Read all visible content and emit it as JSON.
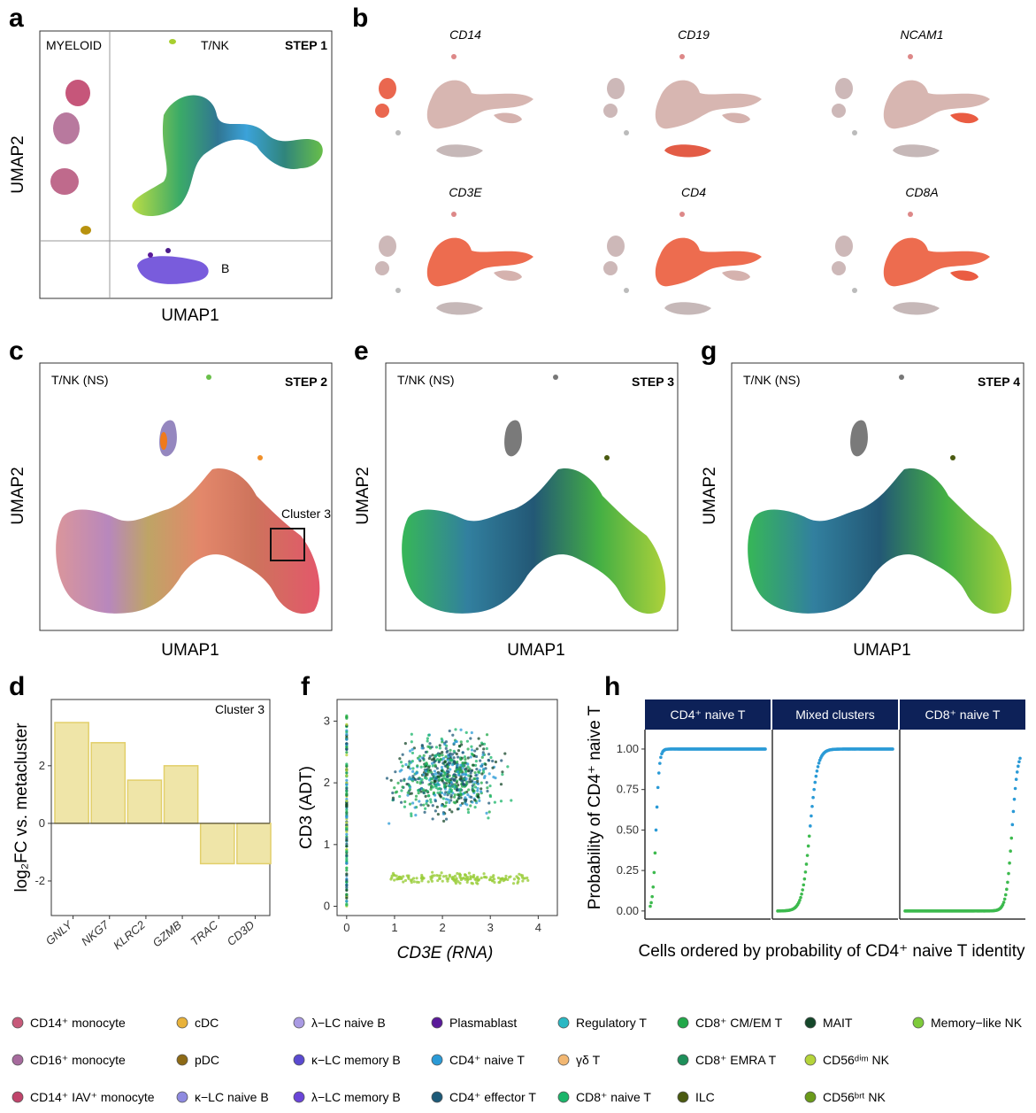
{
  "panels": {
    "a": {
      "label": "a",
      "xlabel": "UMAP1",
      "ylabel": "UMAP2",
      "step": "STEP 1",
      "regions": [
        "MYELOID",
        "T/NK",
        "B"
      ]
    },
    "b": {
      "label": "b",
      "genes": [
        "CD14",
        "CD19",
        "NCAM1",
        "CD3E",
        "CD4",
        "CD8A"
      ]
    },
    "c": {
      "label": "c",
      "title": "T/NK (NS)",
      "step": "STEP 2",
      "annotation": "Cluster 3",
      "xlabel": "UMAP1",
      "ylabel": "UMAP2"
    },
    "e": {
      "label": "e",
      "title": "T/NK (NS)",
      "step": "STEP 3",
      "xlabel": "UMAP1",
      "ylabel": "UMAP2"
    },
    "g": {
      "label": "g",
      "title": "T/NK (NS)",
      "step": "STEP 4",
      "xlabel": "UMAP1",
      "ylabel": "UMAP2"
    },
    "d": {
      "label": "d",
      "annotation": "Cluster 3"
    },
    "f": {
      "label": "f"
    },
    "h": {
      "label": "h",
      "facets": [
        "CD4⁺ naive T",
        "Mixed clusters",
        "CD8⁺ naive T"
      ],
      "strip_color": "#0d2158"
    }
  },
  "chart_data": [
    {
      "id": "d",
      "type": "bar",
      "categories": [
        "GNLY",
        "NKG7",
        "KLRC2",
        "GZMB",
        "TRAC",
        "CD3D"
      ],
      "values": [
        3.5,
        2.8,
        1.5,
        2.0,
        -1.4,
        -1.4
      ],
      "ylabel": "log₂FC vs. metacluster",
      "yticks": [
        -2,
        0,
        2
      ],
      "ylim": [
        -3.2,
        4.3
      ],
      "bar_color": "#efe5a8",
      "bar_edge": "#e2cf6a"
    },
    {
      "id": "f",
      "type": "scatter",
      "xlabel": "CD3E (RNA)",
      "ylabel": "CD3 (ADT)",
      "xticks": [
        0,
        1,
        2,
        3,
        4
      ],
      "yticks": [
        0,
        1,
        2,
        3
      ],
      "xlim": [
        -0.2,
        4.4
      ],
      "ylim": [
        -0.15,
        3.35
      ]
    },
    {
      "id": "h",
      "type": "line",
      "xlabel": "Cells ordered by probability of CD4⁺ naive T identity",
      "ylabel": "Probability of CD4⁺ naive T",
      "yticks": [
        "0.00",
        "0.25",
        "0.50",
        "0.75",
        "1.00"
      ],
      "ylim": [
        -0.05,
        1.12
      ],
      "high_color": "#2a9ad6",
      "low_color": "#3dba4e"
    }
  ],
  "legend": [
    {
      "label": "CD14⁺ monocyte",
      "color": "#c75a7a"
    },
    {
      "label": "cDC",
      "color": "#e8b23a"
    },
    {
      "label": "λ−LC naive B",
      "color": "#a99ae3"
    },
    {
      "label": "Plasmablast",
      "color": "#5a1a9a"
    },
    {
      "label": "Regulatory T",
      "color": "#2ab8c3"
    },
    {
      "label": "CD8⁺ CM/EM T",
      "color": "#22a84a"
    },
    {
      "label": "MAIT",
      "color": "#15472a"
    },
    {
      "label": "Memory−like NK",
      "color": "#7ecb3a"
    },
    {
      "label": "CD16⁺ monocyte",
      "color": "#a66a9d"
    },
    {
      "label": "pDC",
      "color": "#8d6a16"
    },
    {
      "label": "κ−LC memory B",
      "color": "#5a4ad0"
    },
    {
      "label": "CD4⁺ naive T",
      "color": "#2a9ad6"
    },
    {
      "label": "γδ T",
      "color": "#f2b772"
    },
    {
      "label": "CD8⁺ EMRA T",
      "color": "#1e8f5a"
    },
    {
      "label": "CD56ᵈⁱᵐ NK",
      "color": "#b5d43a"
    },
    {
      "label": "CD14⁺ IAV⁺ monocyte",
      "color": "#c0446b"
    },
    {
      "label": "κ−LC naive B",
      "color": "#8e8ae0"
    },
    {
      "label": "λ−LC memory B",
      "color": "#6a45d8"
    },
    {
      "label": "CD4⁺ effector T",
      "color": "#1d5a78"
    },
    {
      "label": "CD8⁺ naive T",
      "color": "#1bb56a"
    },
    {
      "label": "ILC",
      "color": "#4a5a10"
    },
    {
      "label": "CD56ᵇʳᵗ NK",
      "color": "#6a9a1a"
    }
  ]
}
